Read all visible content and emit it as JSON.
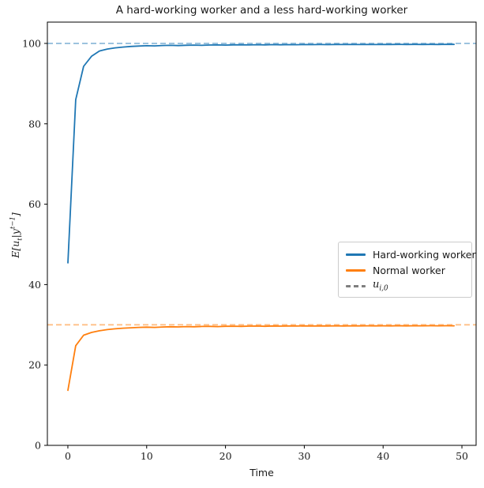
{
  "figure": {
    "title": "A hard-working worker and a less hard-working worker",
    "xlabel": "Time",
    "ylabel_math": {
      "pre": "E[u",
      "sub": "t",
      "mid": "|y",
      "sup": "t−1",
      "post": "]"
    }
  },
  "legend": {
    "entries": [
      {
        "label": "Hard-working worker",
        "color": "#1f77b4",
        "line_style": "solid"
      },
      {
        "label": "Normal worker",
        "color": "#ff7f0e",
        "line_style": "solid"
      },
      {
        "label_math": {
          "base": "u",
          "sub": "i,0"
        },
        "color": "#7f7f7f",
        "line_style": "dashed"
      }
    ]
  },
  "chart_data": {
    "type": "line",
    "title": "A hard-working worker and a less hard-working worker",
    "xlabel": "Time",
    "ylabel": "E[u_t | y^(t-1)]",
    "xlim": [
      -2.6,
      51.8
    ],
    "ylim": [
      0,
      105.3
    ],
    "xticks": [
      0,
      10,
      20,
      30,
      40,
      50
    ],
    "yticks": [
      0,
      20,
      40,
      60,
      80,
      100
    ],
    "grid": false,
    "legend_position": "center right",
    "x": [
      0,
      1,
      2,
      3,
      4,
      5,
      6,
      7,
      8,
      9,
      10,
      11,
      12,
      13,
      14,
      15,
      16,
      17,
      18,
      19,
      20,
      21,
      22,
      23,
      24,
      25,
      26,
      27,
      28,
      29,
      30,
      31,
      32,
      33,
      34,
      35,
      36,
      37,
      38,
      39,
      40,
      41,
      42,
      43,
      44,
      45,
      46,
      47,
      48,
      49
    ],
    "series": [
      {
        "name": "Hard-working worker",
        "color": "#1f77b4",
        "values": [
          45.4,
          86.0,
          94.3,
          96.8,
          98.1,
          98.6,
          98.9,
          99.1,
          99.25,
          99.35,
          99.42,
          99.38,
          99.48,
          99.52,
          99.47,
          99.55,
          99.58,
          99.53,
          99.6,
          99.62,
          99.58,
          99.64,
          99.66,
          99.62,
          99.68,
          99.65,
          99.7,
          99.67,
          99.71,
          99.69,
          99.72,
          99.7,
          99.73,
          99.71,
          99.74,
          99.72,
          99.74,
          99.73,
          99.75,
          99.73,
          99.75,
          99.74,
          99.76,
          99.74,
          99.76,
          99.75,
          99.76,
          99.75,
          99.77,
          99.76
        ]
      },
      {
        "name": "Normal worker",
        "color": "#ff7f0e",
        "values": [
          13.7,
          24.8,
          27.4,
          28.1,
          28.5,
          28.8,
          29.0,
          29.15,
          29.25,
          29.35,
          29.4,
          29.36,
          29.45,
          29.5,
          29.46,
          29.54,
          29.5,
          29.58,
          29.6,
          29.55,
          29.62,
          29.65,
          29.6,
          29.66,
          29.68,
          29.63,
          29.7,
          29.66,
          29.71,
          29.68,
          29.72,
          29.69,
          29.73,
          29.7,
          29.74,
          29.71,
          29.74,
          29.72,
          29.75,
          29.72,
          29.75,
          29.73,
          29.76,
          29.73,
          29.76,
          29.74,
          29.76,
          29.74,
          29.77,
          29.75
        ]
      }
    ],
    "ref_lines": [
      {
        "y": 100,
        "color": "#8fbbda",
        "style": "dashed"
      },
      {
        "y": 30,
        "color": "#ffbf86",
        "style": "dashed"
      }
    ]
  }
}
